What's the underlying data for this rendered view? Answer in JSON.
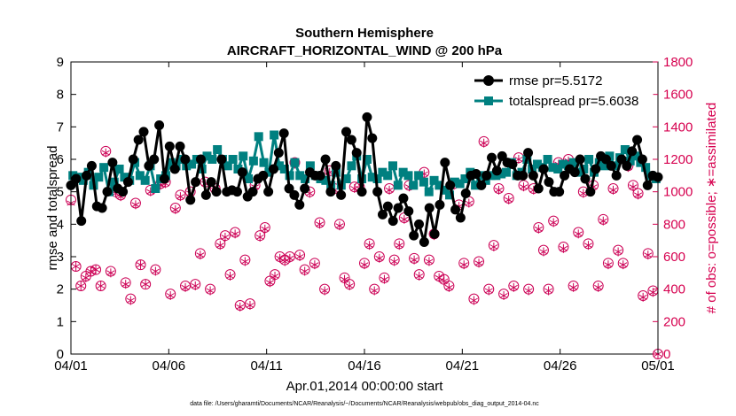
{
  "chart_data": {
    "type": "line",
    "title": [
      "Southern Hemisphere",
      "AIRCRAFT_HORIZONTAL_WIND @ 200 hPa"
    ],
    "xlabel": "Apr.01,2014 00:00:00 start",
    "ylabel": "rmse and totalspread",
    "y2label": "# of obs: o=possible; ∗=assimilated",
    "footnote": "data file: /Users/gharamti/Documents/NCAR/Reanalysis/~/Documents/NCAR/Reanalysis/webpub/obs_diag_output_2014-04.nc",
    "xlim": [
      0,
      30
    ],
    "ylim": [
      0,
      9
    ],
    "y2lim": [
      0,
      1800
    ],
    "x_ticks": [
      0,
      5,
      10,
      15,
      20,
      25,
      30
    ],
    "x_tick_labels": [
      "04/01",
      "04/06",
      "04/11",
      "04/16",
      "04/21",
      "04/26",
      "05/01"
    ],
    "y_ticks": [
      "0",
      "1",
      "2",
      "3",
      "4",
      "5",
      "6",
      "7",
      "8",
      "9"
    ],
    "y2_ticks": [
      "0",
      "200",
      "400",
      "600",
      "800",
      "1000",
      "1200",
      "1400",
      "1600",
      "1800"
    ],
    "legend_position": "top-right",
    "series": [
      {
        "name": "rmse pr=5.5172",
        "color": "#000000",
        "marker": "circle",
        "axis": "left",
        "values": [
          5.2,
          5.4,
          4.1,
          5.5,
          5.8,
          4.55,
          4.5,
          5.0,
          5.9,
          5.1,
          5.0,
          5.3,
          6.0,
          6.6,
          6.85,
          5.8,
          6.0,
          7.05,
          5.4,
          6.4,
          5.7,
          6.4,
          6.0,
          4.75,
          5.3,
          6.0,
          4.9,
          5.3,
          5.0,
          6.0,
          5.0,
          5.05,
          5.0,
          5.6,
          4.85,
          5.0,
          5.4,
          5.5,
          5.0,
          5.7,
          6.2,
          6.8,
          5.1,
          4.9,
          4.6,
          5.1,
          5.6,
          5.5,
          5.5,
          6.0,
          5.0,
          5.8,
          4.9,
          6.85,
          6.6,
          6.2,
          5.0,
          7.3,
          6.65,
          5.0,
          4.3,
          4.55,
          4.1,
          4.5,
          4.8,
          4.4,
          3.65,
          4.0,
          3.45,
          4.5,
          3.7,
          4.6,
          5.9,
          5.2,
          4.45,
          4.2,
          4.95,
          5.5,
          5.55,
          5.2,
          5.5,
          6.05,
          5.65,
          6.1,
          5.9,
          5.85,
          5.5,
          5.5,
          6.2,
          5.5,
          5.1,
          5.7,
          5.3,
          5.0,
          5.0,
          5.5,
          5.7,
          5.6,
          6.0,
          5.4,
          5.0,
          5.7,
          6.1,
          6.0,
          5.8,
          5.5,
          6.0,
          5.8,
          6.25,
          6.6,
          6.0,
          5.2,
          5.5,
          5.45
        ],
        "x_start": 0.0,
        "x_end": 30.0
      },
      {
        "name": "totalspread pr=5.6038",
        "color": "#008080",
        "marker": "square",
        "axis": "left",
        "values": [
          5.5,
          5.45,
          5.35,
          5.6,
          5.2,
          5.45,
          5.75,
          5.0,
          5.3,
          5.7,
          5.45,
          5.35,
          5.9,
          5.5,
          5.35,
          5.8,
          5.1,
          5.4,
          5.5,
          5.9,
          5.8,
          6.0,
          5.8,
          5.85,
          6.0,
          5.7,
          6.1,
          6.0,
          6.3,
          6.0,
          5.8,
          6.0,
          5.7,
          6.1,
          5.4,
          5.95,
          6.7,
          5.9,
          5.6,
          6.75,
          5.8,
          5.7,
          5.5,
          5.9,
          5.5,
          5.4,
          5.8,
          5.5,
          5.4,
          5.35,
          5.2,
          5.6,
          5.2,
          5.4,
          5.8,
          6.1,
          5.4,
          6.0,
          5.45,
          5.4,
          5.6,
          5.5,
          5.8,
          5.2,
          5.6,
          5.5,
          5.2,
          5.5,
          5.3,
          5.0,
          5.35,
          5.2,
          5.05,
          4.9,
          5.3,
          5.25,
          5.4,
          5.6,
          5.2,
          5.5,
          5.35,
          5.5,
          5.5,
          5.55,
          5.6,
          5.9,
          5.5,
          5.6,
          6.0,
          5.7,
          5.85,
          5.75,
          6.0,
          5.75,
          5.7,
          5.85,
          5.8,
          5.9,
          5.6,
          5.7,
          6.0,
          5.6,
          5.9,
          5.8,
          6.1,
          5.8,
          6.05,
          6.3,
          5.95,
          6.1,
          5.9,
          5.75,
          5.5,
          5.4
        ],
        "x_start": 0.1,
        "x_end": 29.9
      },
      {
        "name": "possible",
        "color": "#cc0055",
        "marker": "open-circle",
        "axis": "right",
        "values": [
          950,
          540,
          420,
          480,
          510,
          520,
          420,
          1250,
          510,
          1000,
          980,
          440,
          340,
          930,
          550,
          430,
          1010,
          520,
          1050,
          1060,
          370,
          900,
          980,
          420,
          1000,
          430,
          620,
          1060,
          400,
          1020,
          680,
          730,
          490,
          750,
          300,
          580,
          310,
          1040,
          730,
          780,
          450,
          490,
          600,
          580,
          600,
          1180,
          610,
          520,
          1000,
          560,
          810,
          400,
          1130,
          1020,
          800,
          470,
          430,
          1030,
          1030,
          560,
          680,
          400,
          600,
          470,
          1020,
          580,
          680,
          840,
          1040,
          590,
          490,
          1120,
          580,
          740,
          480,
          460,
          420,
          1050,
          920,
          560,
          940,
          340,
          570,
          1310,
          400,
          670,
          1020,
          370,
          960,
          420,
          1210,
          1040,
          400,
          1020,
          780,
          640,
          400,
          820,
          1180,
          660,
          1200,
          420,
          750,
          1000,
          680,
          1040,
          420,
          830,
          560,
          1020,
          640,
          560,
          1160,
          1040,
          990,
          360,
          620,
          390,
          0
        ],
        "x_start": 0.0,
        "x_end": 30.0
      },
      {
        "name": "assimilated",
        "color": "#cc0055",
        "marker": "asterisk",
        "axis": "right",
        "values": [
          930,
          540,
          420,
          470,
          510,
          520,
          420,
          1240,
          500,
          990,
          970,
          430,
          330,
          920,
          550,
          430,
          1000,
          510,
          1040,
          1050,
          360,
          890,
          970,
          410,
          990,
          420,
          610,
          1050,
          390,
          1010,
          670,
          720,
          480,
          740,
          290,
          570,
          300,
          1030,
          720,
          770,
          440,
          480,
          590,
          570,
          590,
          1170,
          600,
          510,
          990,
          550,
          800,
          390,
          1120,
          1010,
          790,
          460,
          420,
          1020,
          1020,
          550,
          670,
          390,
          590,
          460,
          1010,
          570,
          670,
          830,
          1030,
          580,
          480,
          1110,
          570,
          730,
          470,
          450,
          410,
          1040,
          910,
          550,
          930,
          330,
          560,
          1300,
          390,
          660,
          1010,
          360,
          950,
          410,
          1200,
          1030,
          390,
          1010,
          770,
          630,
          390,
          810,
          1170,
          650,
          1190,
          410,
          740,
          990,
          670,
          1030,
          410,
          820,
          550,
          1010,
          630,
          550,
          1150,
          1030,
          980,
          350,
          610,
          380,
          0
        ],
        "x_start": 0.0,
        "x_end": 30.0
      }
    ]
  }
}
